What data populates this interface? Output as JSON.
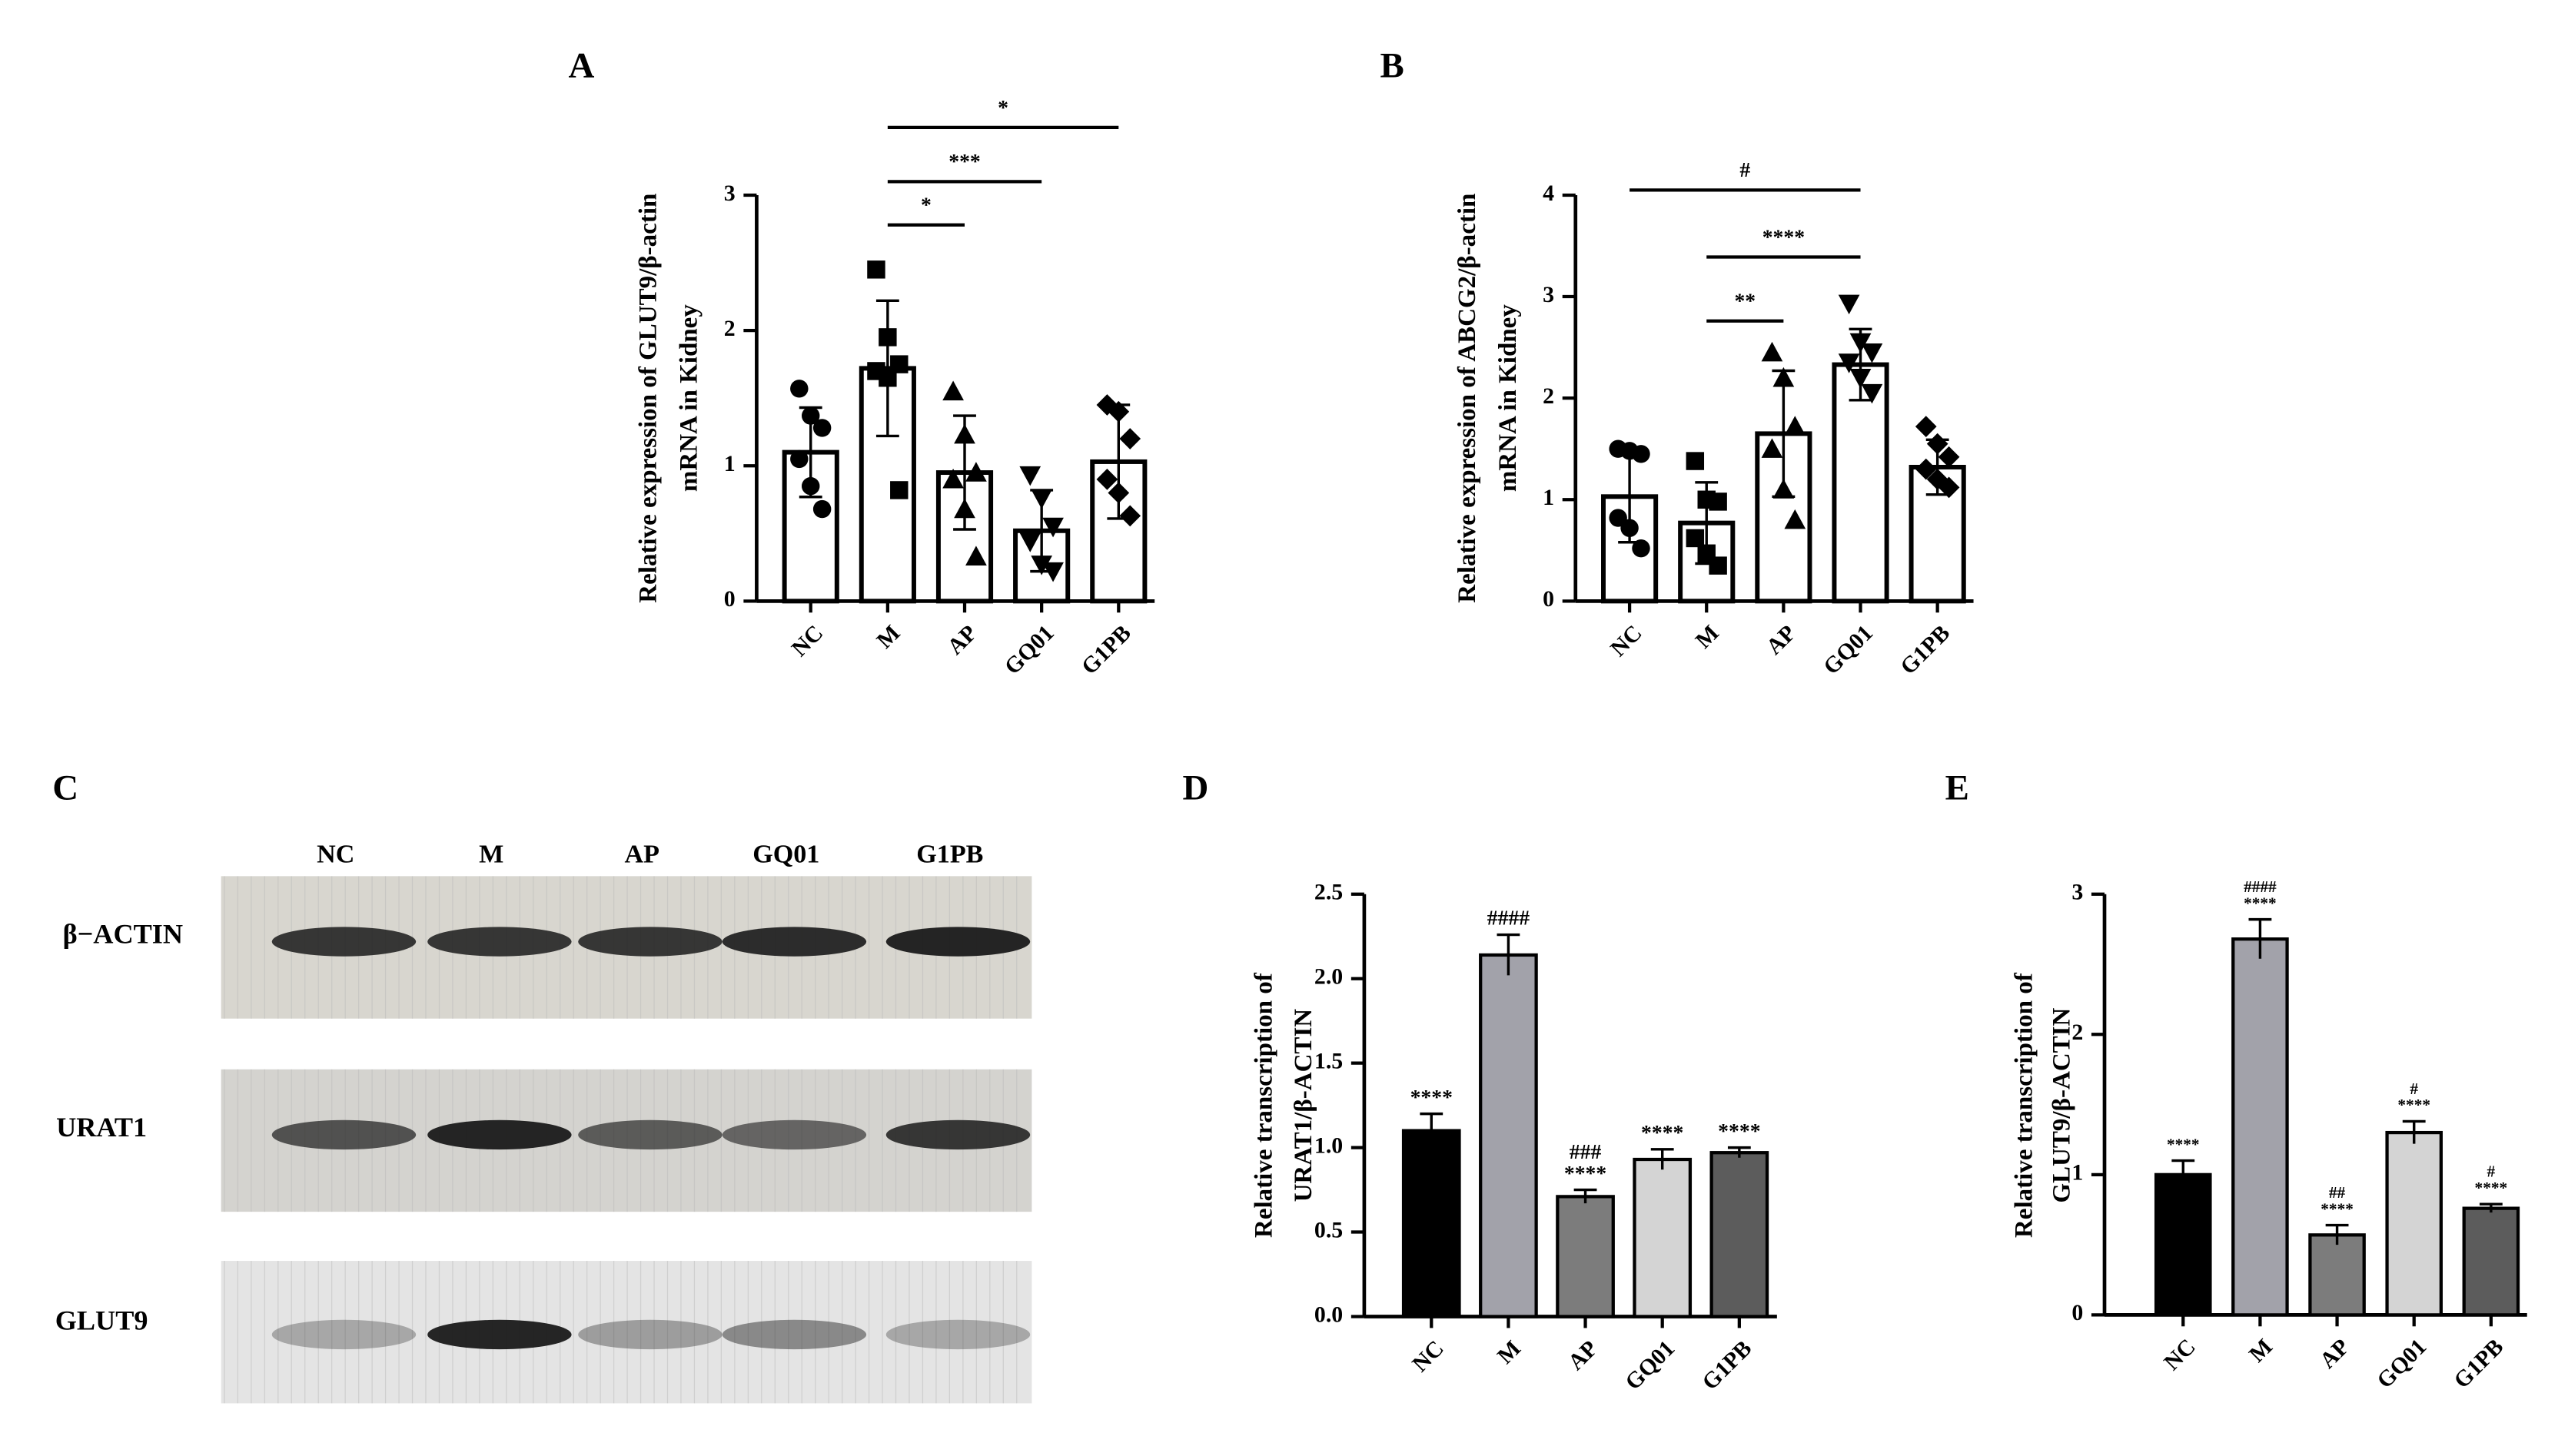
{
  "chart_data": [
    {
      "type": "bar",
      "panel_label": "A",
      "y_label": [
        "Relative expression of GLUT9/β-actin",
        "mRNA in Kidney"
      ],
      "categories": [
        "NC",
        "M",
        "AP",
        "GQ01",
        "G1PB"
      ],
      "values": [
        1.1,
        1.72,
        0.95,
        0.52,
        1.03
      ],
      "errors": [
        0.33,
        0.5,
        0.42,
        0.3,
        0.42
      ],
      "points": [
        [
          1.57,
          1.37,
          1.28,
          1.05,
          0.85,
          0.68
        ],
        [
          2.45,
          1.95,
          1.75,
          1.7,
          1.65,
          0.82
        ],
        [
          1.55,
          1.23,
          0.95,
          0.9,
          0.68,
          0.33
        ],
        [
          0.93,
          0.76,
          0.55,
          0.44,
          0.27,
          0.22
        ],
        [
          1.45,
          1.4,
          1.2,
          0.9,
          0.8,
          0.63
        ]
      ],
      "marker_shapes": [
        "circle",
        "square",
        "triangle-up",
        "triangle-down",
        "diamond"
      ],
      "colors": [
        "#ffffff",
        "#ffffff",
        "#ffffff",
        "#ffffff",
        "#ffffff"
      ],
      "ylim": [
        0,
        3
      ],
      "yticks": [
        0,
        1,
        2,
        3
      ],
      "brackets": [
        {
          "span": [
            "M",
            "AP"
          ],
          "label": "*",
          "y": 2.78
        },
        {
          "span": [
            "M",
            "GQ01"
          ],
          "label": "***",
          "y": 3.1
        },
        {
          "span": [
            "M",
            "G1PB"
          ],
          "label": "*",
          "y": 3.5
        }
      ]
    },
    {
      "type": "bar",
      "panel_label": "B",
      "y_label": [
        "Relative expression of ABCG2/β-actin",
        "mRNA in Kidney"
      ],
      "categories": [
        "NC",
        "M",
        "AP",
        "GQ01",
        "G1PB"
      ],
      "values": [
        1.03,
        0.77,
        1.65,
        2.33,
        1.32
      ],
      "errors": [
        0.45,
        0.4,
        0.62,
        0.35,
        0.27
      ],
      "points": [
        [
          1.5,
          1.48,
          1.45,
          0.82,
          0.72,
          0.52
        ],
        [
          1.38,
          1.0,
          0.98,
          0.62,
          0.47,
          0.35
        ],
        [
          2.45,
          2.2,
          1.72,
          1.5,
          1.1,
          0.8
        ],
        [
          2.93,
          2.55,
          2.45,
          2.35,
          2.2,
          2.05
        ],
        [
          1.72,
          1.55,
          1.42,
          1.3,
          1.2,
          1.12
        ]
      ],
      "marker_shapes": [
        "circle",
        "square",
        "triangle-up",
        "triangle-down",
        "diamond"
      ],
      "colors": [
        "#ffffff",
        "#ffffff",
        "#ffffff",
        "#ffffff",
        "#ffffff"
      ],
      "ylim": [
        0,
        4
      ],
      "yticks": [
        0,
        1,
        2,
        3,
        4
      ],
      "brackets": [
        {
          "span": [
            "M",
            "AP"
          ],
          "label": "**",
          "y": 2.76
        },
        {
          "span": [
            "M",
            "GQ01"
          ],
          "label": "****",
          "y": 3.39
        },
        {
          "span": [
            "NC",
            "GQ01"
          ],
          "label": "#",
          "y": 4.05
        }
      ]
    },
    {
      "type": "bar",
      "panel_label": "D",
      "y_label": [
        "Relative transcription of",
        "URAT1/β-ACTIN"
      ],
      "categories": [
        "NC",
        "M",
        "AP",
        "GQ01",
        "G1PB"
      ],
      "values": [
        1.1,
        2.14,
        0.71,
        0.93,
        0.97
      ],
      "errors": [
        0.1,
        0.12,
        0.04,
        0.06,
        0.03
      ],
      "colors": [
        "#000000",
        "#a2a2aa",
        "#7c7c7c",
        "#d4d4d4",
        "#5c5c5c"
      ],
      "ylim": [
        0,
        2.5
      ],
      "yticks": [
        {
          "value": 0,
          "label": "0.0"
        },
        {
          "value": 0.5,
          "label": "0.5"
        },
        {
          "value": 1,
          "label": "1.0"
        },
        {
          "value": 1.5,
          "label": "1.5"
        },
        {
          "value": 2,
          "label": "2.0"
        },
        {
          "value": 2.5,
          "label": "2.5"
        }
      ],
      "annotations": [
        [
          "****"
        ],
        [
          "####"
        ],
        [
          "###",
          "****"
        ],
        [
          "****"
        ],
        [
          "****"
        ]
      ]
    },
    {
      "type": "bar",
      "panel_label": "E",
      "y_label": [
        "Relative transcription of",
        "GLUT9/β-ACTIN"
      ],
      "categories": [
        "NC",
        "M",
        "AP",
        "GQ01",
        "G1PB"
      ],
      "values": [
        1.0,
        2.68,
        0.57,
        1.3,
        0.76
      ],
      "errors": [
        0.1,
        0.14,
        0.07,
        0.08,
        0.03
      ],
      "colors": [
        "#000000",
        "#a2a2aa",
        "#7c7c7c",
        "#d4d4d4",
        "#5c5c5c"
      ],
      "ylim": [
        0,
        3
      ],
      "yticks": [
        0,
        1,
        2,
        3
      ],
      "annotations": [
        [
          "****"
        ],
        [
          "####",
          "****"
        ],
        [
          "##",
          "****"
        ],
        [
          "#",
          "****"
        ],
        [
          "#",
          "****"
        ]
      ]
    }
  ],
  "western_blot": {
    "panel_label": "C",
    "lanes": [
      "NC",
      "M",
      "AP",
      "GQ01",
      "G1PB"
    ],
    "proteins": [
      "β−ACTIN",
      "URAT1",
      "GLUT9"
    ]
  }
}
